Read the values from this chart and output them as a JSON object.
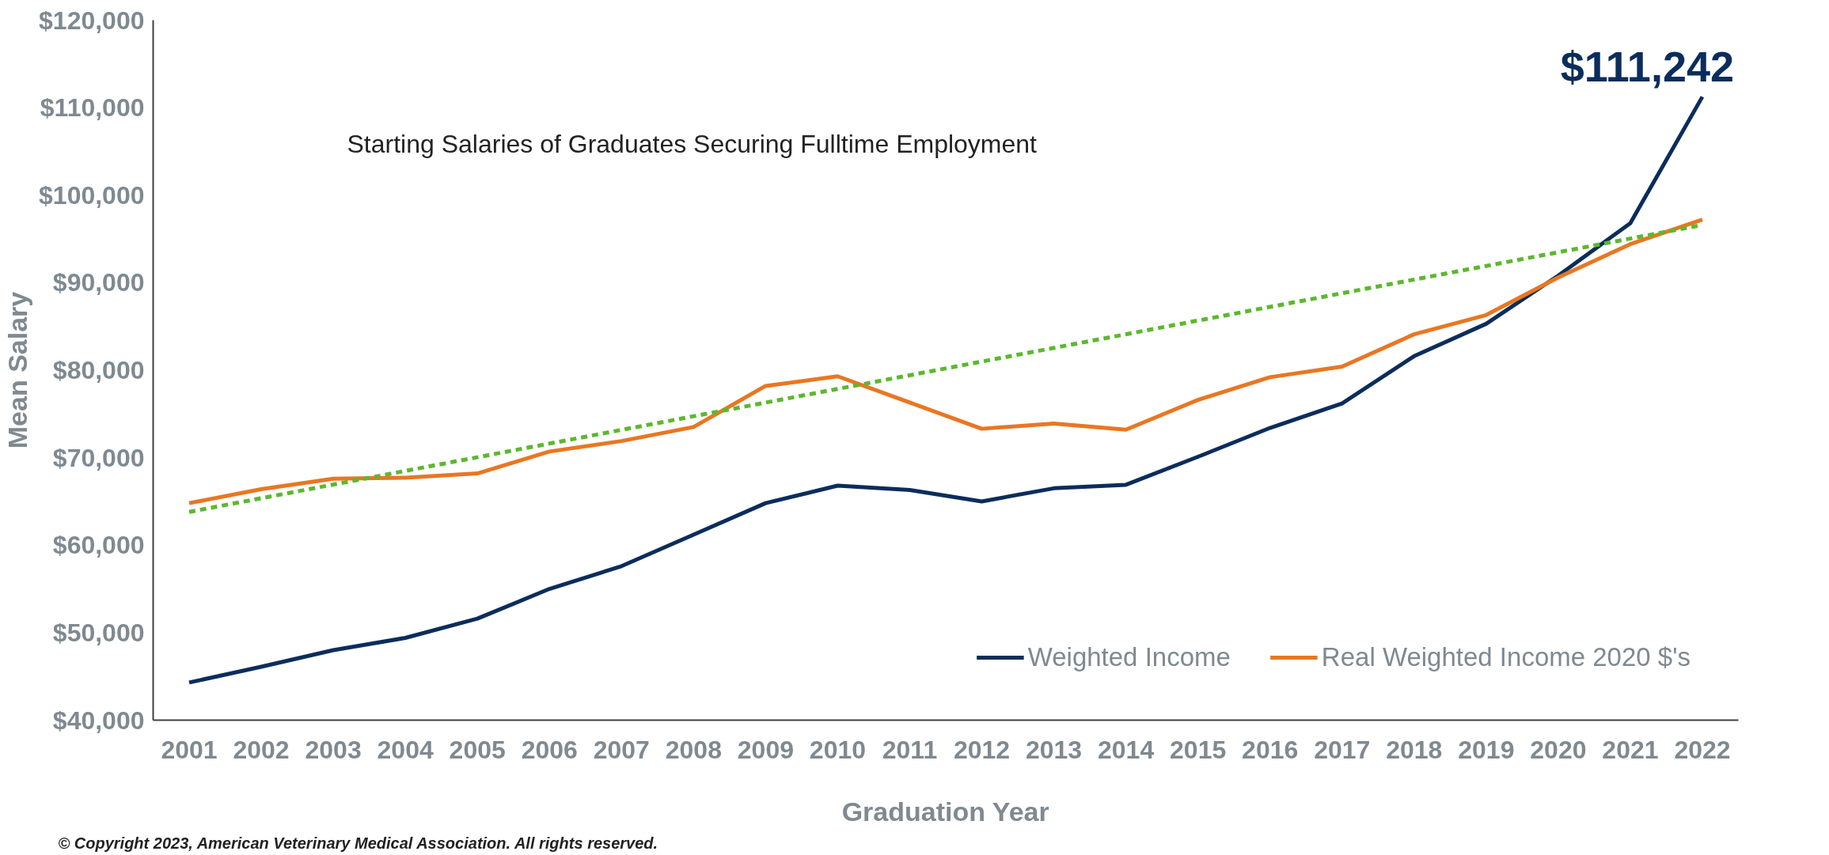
{
  "chart_data": {
    "type": "line",
    "title": "Starting Salaries of Graduates Securing Fulltime Employment",
    "xlabel": "Graduation Year",
    "ylabel": "Mean Salary",
    "x": [
      2001,
      2002,
      2003,
      2004,
      2005,
      2006,
      2007,
      2008,
      2009,
      2010,
      2011,
      2012,
      2013,
      2014,
      2015,
      2016,
      2017,
      2018,
      2019,
      2020,
      2021,
      2022
    ],
    "series": [
      {
        "name": "Weighted Income",
        "color": "#0b2d5b",
        "values": [
          44300,
          46100,
          48000,
          49400,
          51600,
          55000,
          57600,
          61200,
          64800,
          66800,
          66300,
          65000,
          66500,
          66900,
          70100,
          73400,
          76200,
          81600,
          85300,
          90800,
          96800,
          111242
        ]
      },
      {
        "name": "Real Weighted Income 2020 $'s",
        "color": "#e87722",
        "values": [
          64800,
          66400,
          67600,
          67700,
          68200,
          70700,
          71900,
          73500,
          78200,
          79300,
          76300,
          73300,
          73900,
          73200,
          76600,
          79200,
          80400,
          84100,
          86300,
          90600,
          94400,
          97200
        ]
      },
      {
        "color": "#5cb82e",
        "x": [
          2001,
          2022
        ],
        "values": [
          63800,
          96600
        ],
        "line_style": "dashed"
      }
    ],
    "xlim": [
      2000.5,
      2022.5
    ],
    "ylim": [
      40000,
      120000
    ],
    "xticks": [
      2001,
      2002,
      2003,
      2004,
      2005,
      2006,
      2007,
      2008,
      2009,
      2010,
      2011,
      2012,
      2013,
      2014,
      2015,
      2016,
      2017,
      2018,
      2019,
      2020,
      2021,
      2022
    ],
    "yticks": [
      {
        "value": 40000,
        "label": "$40,000"
      },
      {
        "value": 50000,
        "label": "$50,000"
      },
      {
        "value": 60000,
        "label": "$60,000"
      },
      {
        "value": 70000,
        "label": "$70,000"
      },
      {
        "value": 80000,
        "label": "$80,000"
      },
      {
        "value": 90000,
        "label": "$90,000"
      },
      {
        "value": 100000,
        "label": "$100,000"
      },
      {
        "value": 110000,
        "label": "$110,000"
      },
      {
        "value": 120000,
        "label": "$120,000"
      }
    ],
    "annotations": [
      {
        "text": "$111,242",
        "x": 2022,
        "y": 111242
      },
      "© Copyright 2023, American Veterinary Medical Association. All rights reserved."
    ],
    "legend": "bottom right",
    "grid": false,
    "line_style": "solid",
    "marker": "none"
  }
}
